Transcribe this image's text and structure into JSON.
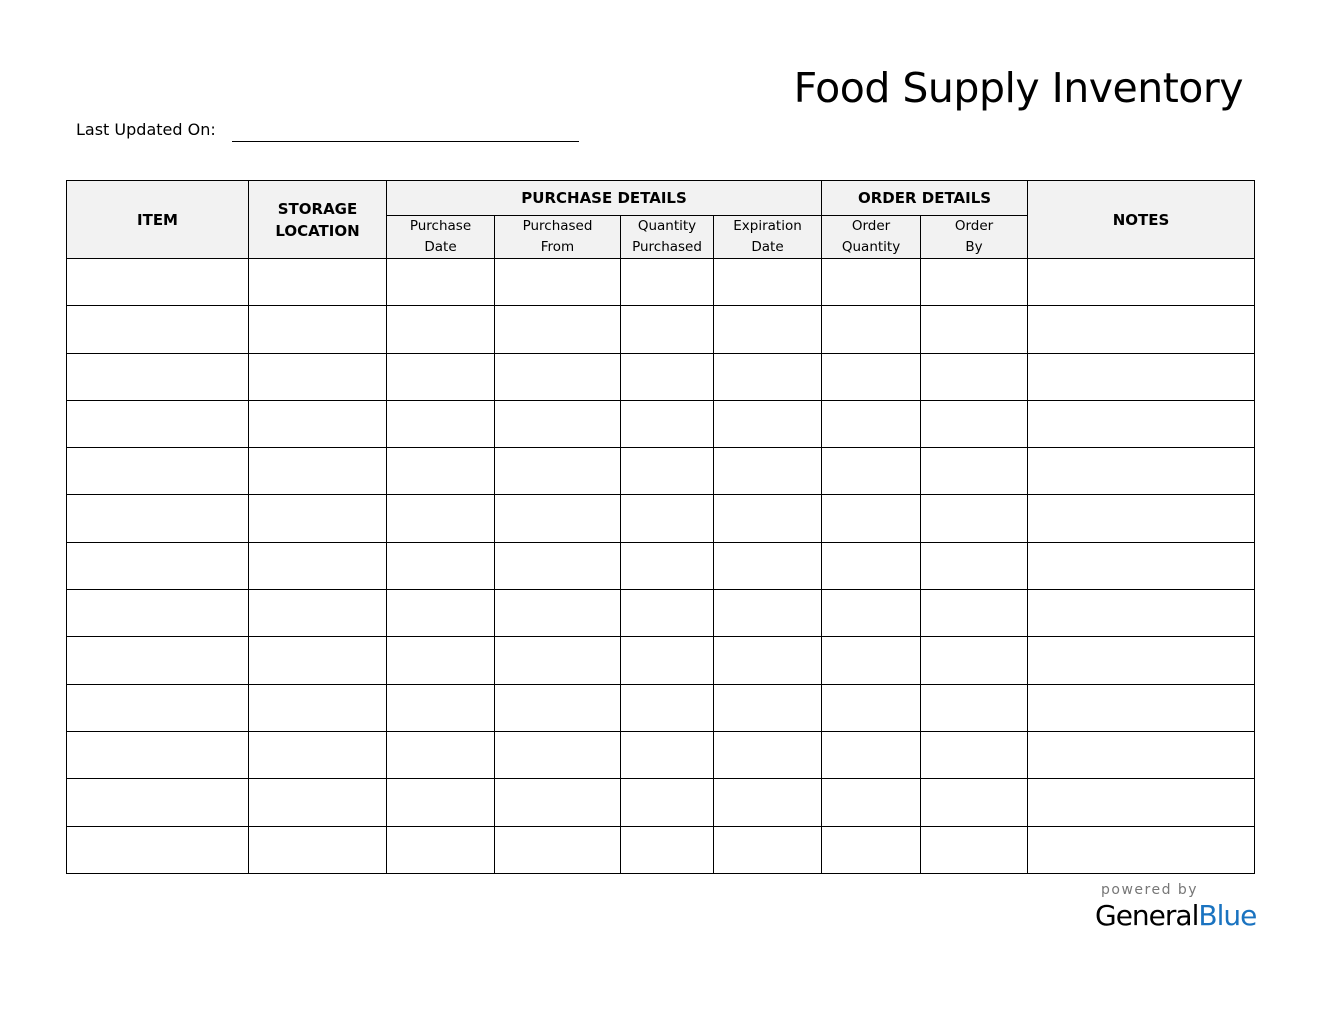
{
  "title": "Food Supply Inventory",
  "last_updated_label": "Last Updated On:",
  "headers": {
    "item": "ITEM",
    "storage_location": "STORAGE LOCATION",
    "purchase_details": "PURCHASE DETAILS",
    "order_details": "ORDER DETAILS",
    "notes": "NOTES",
    "purchase_date": "Purchase Date",
    "purchased_from": "Purchased From",
    "quantity_purchased": "Quantity Purchased",
    "expiration_date": "Expiration Date",
    "order_quantity": "Order Quantity",
    "order_by": "Order By"
  },
  "footer": {
    "powered_by": "powered by",
    "brand_general": "General",
    "brand_blue": "Blue",
    "brand_color": "#1a73c0"
  },
  "colors": {
    "header_fill": "#f2f2f2"
  }
}
